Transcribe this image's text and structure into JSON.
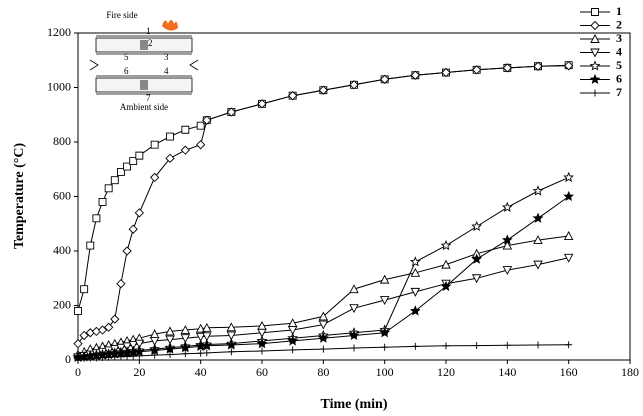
{
  "chart_data": {
    "type": "line",
    "x_label": "Time (min)",
    "y_label": "Temperature (°C)",
    "xlim": [
      0,
      180
    ],
    "xticks": [
      0,
      20,
      40,
      60,
      80,
      100,
      120,
      140,
      160,
      180
    ],
    "ylim": [
      0,
      1200
    ],
    "yticks": [
      0,
      200,
      400,
      600,
      800,
      1000,
      1200
    ],
    "x": [
      0,
      2,
      4,
      6,
      8,
      10,
      12,
      14,
      16,
      18,
      20,
      25,
      30,
      35,
      40,
      42,
      50,
      60,
      70,
      80,
      90,
      100,
      110,
      120,
      130,
      140,
      150,
      160
    ],
    "series": [
      {
        "name": "1",
        "color": "#000000",
        "marker": "square",
        "values": [
          180,
          260,
          420,
          520,
          580,
          630,
          660,
          690,
          710,
          730,
          750,
          790,
          820,
          845,
          860,
          880,
          910,
          940,
          970,
          990,
          1010,
          1030,
          1045,
          1055,
          1065,
          1072,
          1078,
          1082
        ]
      },
      {
        "name": "2",
        "color": "#000000",
        "marker": "diamond",
        "values": [
          60,
          90,
          100,
          105,
          110,
          120,
          150,
          280,
          400,
          480,
          540,
          670,
          740,
          770,
          790,
          880,
          910,
          940,
          970,
          990,
          1010,
          1030,
          1045,
          1055,
          1065,
          1072,
          1078,
          1080
        ]
      },
      {
        "name": "3",
        "color": "#000000",
        "marker": "triangle-up",
        "values": [
          20,
          30,
          40,
          45,
          50,
          55,
          60,
          65,
          70,
          75,
          80,
          95,
          105,
          110,
          115,
          118,
          120,
          125,
          135,
          160,
          260,
          295,
          320,
          350,
          390,
          420,
          440,
          455
        ]
      },
      {
        "name": "4",
        "color": "#000000",
        "marker": "triangle-down",
        "values": [
          10,
          15,
          20,
          25,
          30,
          35,
          40,
          45,
          50,
          55,
          60,
          70,
          75,
          80,
          85,
          87,
          90,
          100,
          110,
          130,
          190,
          220,
          250,
          280,
          300,
          330,
          350,
          375
        ]
      },
      {
        "name": "5",
        "color": "#000000",
        "marker": "star-open",
        "values": [
          10,
          12,
          15,
          18,
          20,
          22,
          25,
          28,
          30,
          33,
          35,
          40,
          45,
          50,
          55,
          57,
          60,
          70,
          80,
          90,
          100,
          110,
          360,
          420,
          490,
          560,
          620,
          670
        ]
      },
      {
        "name": "6",
        "color": "#000000",
        "marker": "star-filled",
        "values": [
          10,
          12,
          14,
          16,
          18,
          20,
          22,
          24,
          26,
          28,
          30,
          35,
          40,
          45,
          50,
          52,
          55,
          60,
          70,
          80,
          90,
          100,
          180,
          270,
          370,
          440,
          520,
          600
        ]
      },
      {
        "name": "7",
        "color": "#000000",
        "marker": "plus",
        "values": [
          5,
          6,
          7,
          8,
          9,
          10,
          11,
          12,
          13,
          14,
          15,
          18,
          20,
          23,
          25,
          26,
          30,
          33,
          37,
          40,
          44,
          47,
          50,
          52,
          53,
          54,
          55,
          56
        ]
      }
    ],
    "legend": "top-right",
    "inset": {
      "top_label": "Fire side",
      "bottom_label": "Ambient side",
      "point_labels": [
        "1",
        "5",
        "2",
        "3",
        "6",
        "4",
        "7"
      ]
    }
  }
}
